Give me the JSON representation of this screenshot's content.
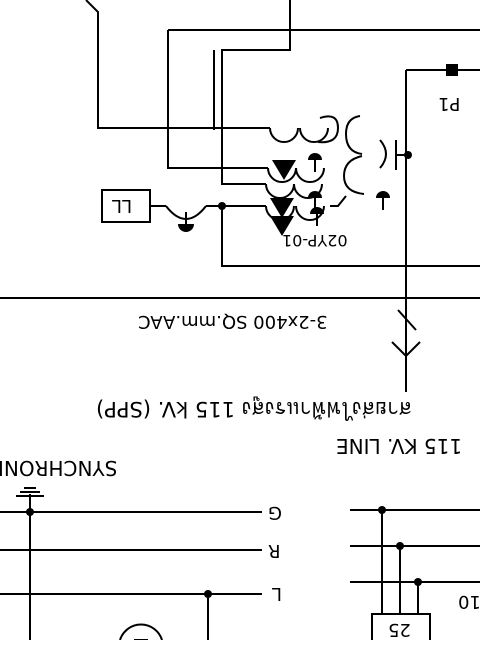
{
  "labels": {
    "p1": "P1",
    "ll": "LL",
    "transformer": "02YP-01",
    "cable": "3-2x400 SQ.mm.AAC",
    "thai_line": "สายส่งไฟฟ้าแรงสูง 115 kV. (SPP)",
    "kv_line": "115 KV. LINE",
    "synchroni": "SYNCHRONI",
    "phase_g": "G",
    "phase_r": "R",
    "phase_l": "L",
    "box_25": "25",
    "edge_label": "10"
  }
}
